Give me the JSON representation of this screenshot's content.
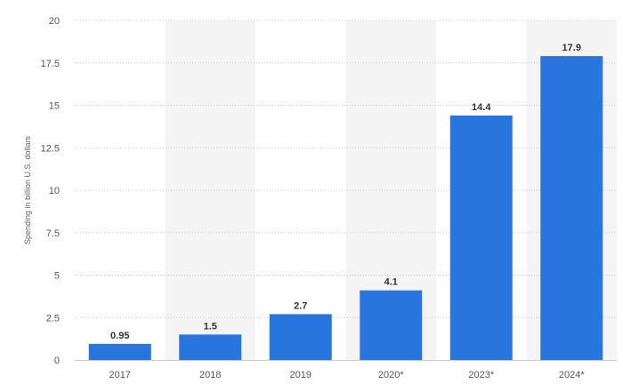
{
  "chart_data": {
    "type": "bar",
    "categories": [
      "2017",
      "2018",
      "2019",
      "2020*",
      "2023*",
      "2024*"
    ],
    "values": [
      0.95,
      1.5,
      2.7,
      4.1,
      14.4,
      17.9
    ],
    "data_labels": [
      "0.95",
      "1.5",
      "2.7",
      "4.1",
      "14.4",
      "17.9"
    ],
    "ylabel": "Spending in billion U.S. dollars",
    "ylim": [
      0,
      20
    ],
    "yticks": [
      0,
      2.5,
      5,
      7.5,
      10,
      12.5,
      15,
      17.5,
      20
    ],
    "ytick_labels": [
      "0",
      "2.5",
      "5",
      "7.5",
      "10",
      "12.5",
      "15",
      "17.5",
      "20"
    ],
    "grid": true,
    "bar_color": "#2876dd",
    "band_color": "#f4f4f4"
  }
}
